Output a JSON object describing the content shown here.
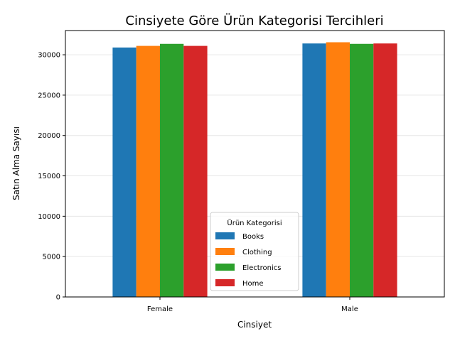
{
  "chart_data": {
    "type": "bar",
    "title": "Cinsiyete Göre Ürün Kategorisi Tercihleri",
    "xlabel": "Cinsiyet",
    "ylabel": "Satın Alma Sayısı",
    "categories": [
      "Female",
      "Male"
    ],
    "series": [
      {
        "name": "Books",
        "color": "#1f77b4",
        "values": [
          30900,
          31400
        ]
      },
      {
        "name": "Clothing",
        "color": "#ff7f0e",
        "values": [
          31100,
          31550
        ]
      },
      {
        "name": "Electronics",
        "color": "#2ca02c",
        "values": [
          31350,
          31350
        ]
      },
      {
        "name": "Home",
        "color": "#d62728",
        "values": [
          31100,
          31400
        ]
      }
    ],
    "ylim": [
      0,
      33000
    ],
    "yticks": [
      0,
      5000,
      10000,
      15000,
      20000,
      25000,
      30000
    ],
    "grid": "y",
    "legend": {
      "title": "Ürün Kategorisi",
      "position": "lower-center"
    }
  }
}
